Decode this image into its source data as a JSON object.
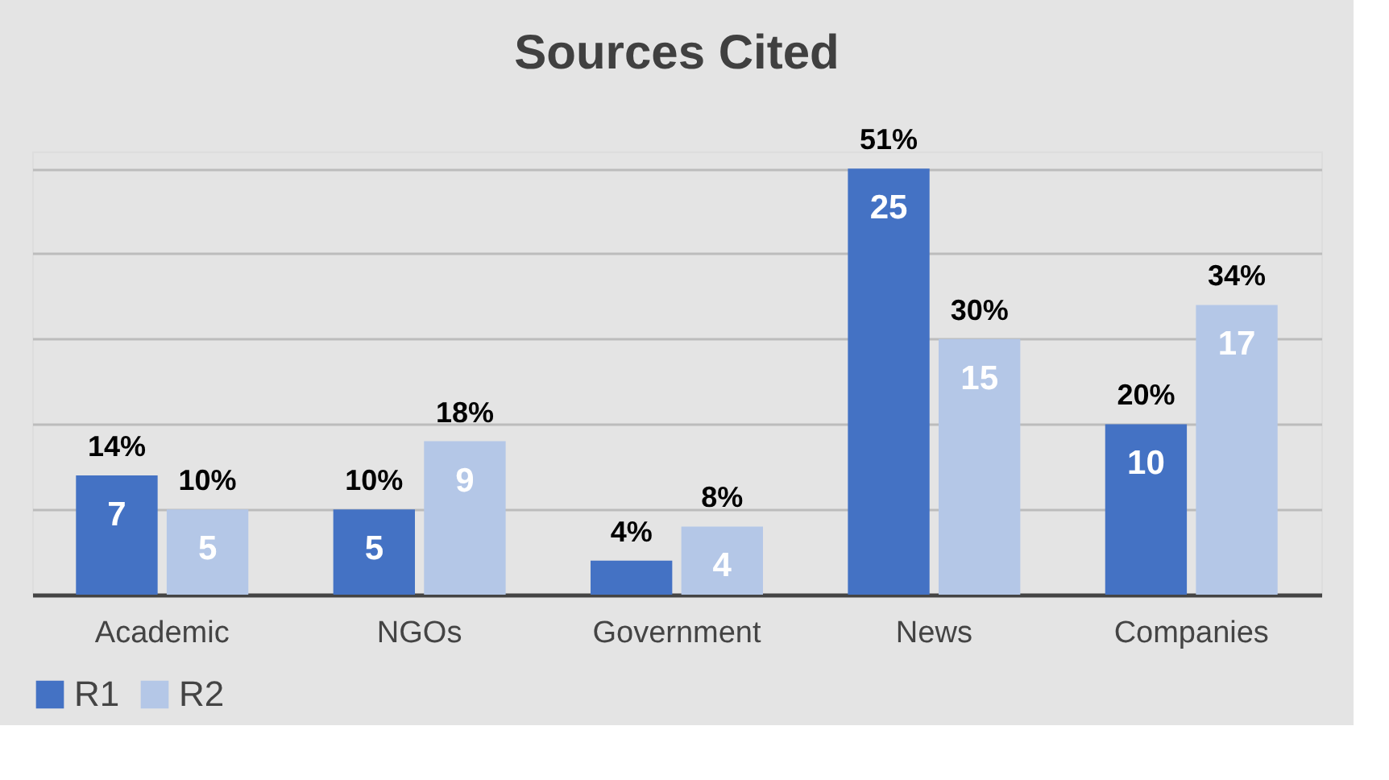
{
  "chart_data": {
    "type": "bar",
    "title": "Sources Cited",
    "categories": [
      "Academic",
      "NGOs",
      "Government",
      "News",
      "Companies"
    ],
    "series": [
      {
        "name": "R1",
        "color": "#4472c4",
        "values": [
          7,
          5,
          2,
          25,
          10
        ],
        "value_labels": [
          "7",
          "5",
          null,
          "25",
          "10"
        ]
      },
      {
        "name": "R2",
        "color": "#b4c7e7",
        "values": [
          5,
          9,
          4,
          15,
          17
        ],
        "value_labels": [
          "5",
          "9",
          "4",
          "15",
          "17"
        ]
      }
    ],
    "annotations": [
      {
        "text": "14%",
        "x": "Academic",
        "y": 7
      },
      {
        "text": "10%",
        "x": "Academic",
        "y": 5
      },
      {
        "text": "10%",
        "x": "NGOs",
        "y": 5
      },
      {
        "text": "18%",
        "x": "NGOs",
        "y": 9
      },
      {
        "text": "4%",
        "x": "Government",
        "y": 2
      },
      {
        "text": "8%",
        "x": "Government",
        "y": 4
      },
      {
        "text": "51%",
        "x": "News",
        "y": 25
      },
      {
        "text": "30%",
        "x": "News",
        "y": 15
      },
      {
        "text": "20%",
        "x": "Companies",
        "y": 10
      },
      {
        "text": "34%",
        "x": "Companies",
        "y": 17
      }
    ],
    "grid": "y",
    "legend": "bottom",
    "tick_labels": "x"
  }
}
